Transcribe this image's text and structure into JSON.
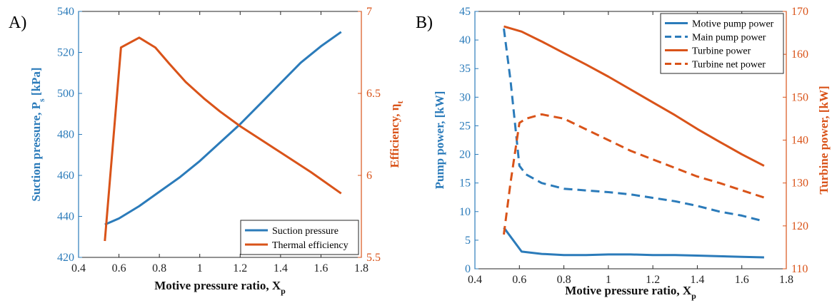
{
  "panels": {
    "a": {
      "label": "A)"
    },
    "b": {
      "label": "B)"
    }
  },
  "colors": {
    "blue": "#0072bd",
    "orange": "#d95319"
  },
  "chart_data": [
    {
      "type": "line",
      "x_axis": {
        "label_main": "Motive pressure ratio, X",
        "label_sub": "p",
        "lim": [
          0.4,
          1.8
        ],
        "ticks": [
          "0.4",
          "0.6",
          "0.8",
          "1",
          "1.2",
          "1.4",
          "1.6",
          "1.8"
        ]
      },
      "y_left": {
        "label_main": "Suction pressure, P",
        "label_sub": "s",
        "label_unit": " [kPa]",
        "lim": [
          420,
          540
        ],
        "ticks": [
          "420",
          "440",
          "460",
          "480",
          "500",
          "520",
          "540"
        ]
      },
      "y_right": {
        "label_main": "Efficiency, η",
        "label_sub": "t",
        "lim": [
          5.5,
          7
        ],
        "ticks": [
          "5.5",
          "6",
          "6.5",
          "7"
        ]
      },
      "series": [
        {
          "name": "Suction pressure",
          "axis": "left",
          "style": "solid",
          "color": "#0072bd",
          "x": [
            0.53,
            0.6,
            0.7,
            0.8,
            0.9,
            1.0,
            1.1,
            1.2,
            1.3,
            1.4,
            1.5,
            1.6,
            1.7
          ],
          "y": [
            436,
            439,
            445,
            452,
            459,
            467,
            476,
            485,
            495,
            505,
            515,
            523,
            530
          ]
        },
        {
          "name": "Thermal efficiency",
          "axis": "right",
          "style": "solid",
          "color": "#d95319",
          "x": [
            0.53,
            0.61,
            0.7,
            0.78,
            0.85,
            0.93,
            1.02,
            1.1,
            1.2,
            1.3,
            1.4,
            1.55,
            1.7
          ],
          "y": [
            5.6,
            6.78,
            6.84,
            6.78,
            6.68,
            6.57,
            6.47,
            6.39,
            6.3,
            6.22,
            6.14,
            6.02,
            5.89
          ]
        }
      ],
      "legend": {
        "position": "bottom-right"
      }
    },
    {
      "type": "line",
      "x_axis": {
        "label_main": "Motive pressure ratio, X",
        "label_sub": "p",
        "lim": [
          0.4,
          1.8
        ],
        "ticks": [
          "0.4",
          "0.6",
          "0.8",
          "1",
          "1.2",
          "1.4",
          "1.6",
          "1.8"
        ]
      },
      "y_left": {
        "label_main": "Pump power, [kW]",
        "lim": [
          0,
          45
        ],
        "ticks": [
          "0",
          "5",
          "10",
          "15",
          "20",
          "25",
          "30",
          "35",
          "40",
          "45"
        ]
      },
      "y_right": {
        "label_main": "Turbine power, [kW]",
        "lim": [
          110,
          170
        ],
        "ticks": [
          "110",
          "120",
          "130",
          "140",
          "150",
          "160",
          "170"
        ]
      },
      "series": [
        {
          "name": "Motive pump power",
          "axis": "left",
          "style": "solid",
          "color": "#0072bd",
          "x": [
            0.53,
            0.61,
            0.7,
            0.8,
            0.9,
            1.0,
            1.1,
            1.2,
            1.3,
            1.4,
            1.5,
            1.6,
            1.7
          ],
          "y": [
            7.2,
            3.0,
            2.6,
            2.4,
            2.4,
            2.5,
            2.5,
            2.4,
            2.4,
            2.3,
            2.2,
            2.1,
            2.0
          ]
        },
        {
          "name": "Main pump power",
          "axis": "left",
          "style": "dashed",
          "color": "#0072bd",
          "x": [
            0.53,
            0.56,
            0.6,
            0.63,
            0.7,
            0.8,
            0.9,
            1.0,
            1.1,
            1.2,
            1.3,
            1.4,
            1.5,
            1.6,
            1.7
          ],
          "y": [
            42,
            33,
            18,
            16.5,
            15,
            14,
            13.7,
            13.4,
            13,
            12.4,
            11.8,
            11,
            10,
            9.3,
            8.3
          ]
        },
        {
          "name": "Turbine power",
          "axis": "right",
          "style": "solid",
          "color": "#d95319",
          "x": [
            0.53,
            0.61,
            0.7,
            0.8,
            0.9,
            1.0,
            1.1,
            1.2,
            1.3,
            1.4,
            1.5,
            1.6,
            1.7
          ],
          "y": [
            166.5,
            165.3,
            163,
            160.3,
            157.6,
            154.8,
            151.8,
            148.8,
            145.8,
            142.6,
            139.6,
            136.7,
            134
          ]
        },
        {
          "name": "Turbine net power",
          "axis": "right",
          "style": "dashed",
          "color": "#d95319",
          "x": [
            0.53,
            0.56,
            0.6,
            0.63,
            0.7,
            0.8,
            0.9,
            1.0,
            1.1,
            1.2,
            1.3,
            1.4,
            1.5,
            1.6,
            1.7
          ],
          "y": [
            118,
            130,
            144,
            145,
            146,
            145,
            142.5,
            140,
            137.5,
            135.5,
            133.5,
            131.5,
            130,
            128.3,
            126.6
          ]
        }
      ],
      "legend": {
        "position": "top-right"
      }
    }
  ]
}
